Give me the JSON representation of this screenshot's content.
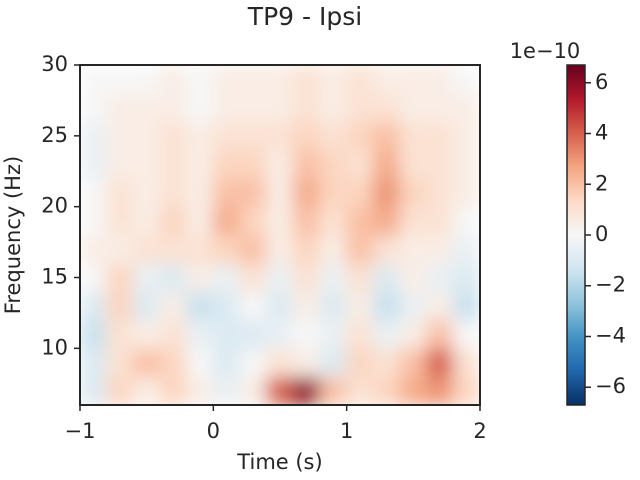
{
  "chart_data": {
    "type": "heatmap",
    "title": "TP9 - Ipsi",
    "xlabel": "Time (s)",
    "ylabel": "Frequency (Hz)",
    "x": [
      -0.9,
      -0.7,
      -0.5,
      -0.3,
      -0.1,
      0.1,
      0.3,
      0.5,
      0.7,
      0.9,
      1.1,
      1.3,
      1.5,
      1.7,
      1.9
    ],
    "y": [
      7,
      9,
      11,
      13,
      15,
      17,
      19,
      21,
      23,
      25,
      27,
      29
    ],
    "values": [
      [
        -1,
        1.5,
        0.5,
        1.5,
        0.5,
        -0.5,
        0.5,
        4,
        6,
        2,
        1,
        1.5,
        2.5,
        3,
        1.5
      ],
      [
        -1,
        1,
        2,
        1.5,
        0,
        -1,
        0,
        1,
        0.5,
        -1,
        1.5,
        1,
        2,
        4,
        1
      ],
      [
        -1.5,
        1,
        0.5,
        1,
        -0.5,
        -1,
        -1,
        -0.5,
        0,
        -0.5,
        1,
        -0.5,
        0.5,
        2,
        0
      ],
      [
        -1,
        1.5,
        -1,
        0.5,
        -1.5,
        -1,
        0,
        -1,
        0.5,
        -1,
        0.5,
        -1.5,
        -0.5,
        0.5,
        -1.5
      ],
      [
        0,
        1.5,
        -0.5,
        -1,
        0.5,
        -0.5,
        1,
        -0.5,
        1,
        -0.5,
        1,
        -1,
        0.5,
        -0.5,
        -1
      ],
      [
        0.5,
        0.5,
        1,
        1,
        1,
        1.5,
        2,
        0.5,
        1.5,
        0.5,
        2,
        1,
        0.5,
        0.5,
        -0.5
      ],
      [
        0,
        1,
        0.5,
        1.5,
        0.5,
        2.5,
        1.5,
        0.5,
        2,
        1,
        2,
        2.5,
        1,
        1,
        0
      ],
      [
        0,
        1,
        0.5,
        1,
        0.5,
        2,
        2,
        0.5,
        2.5,
        1.5,
        1.5,
        3,
        1.5,
        1,
        0.5
      ],
      [
        -0.5,
        0.5,
        0.5,
        1,
        0.5,
        1.5,
        1.5,
        0.5,
        2,
        1.5,
        1,
        2.5,
        1,
        1,
        0.5
      ],
      [
        -0.5,
        0.5,
        0.5,
        1,
        0.5,
        1,
        1,
        1,
        1.5,
        1,
        1.5,
        2,
        1,
        1,
        0.5
      ],
      [
        0,
        0.5,
        0.5,
        0.5,
        0,
        0.5,
        0.5,
        0.5,
        1,
        0.5,
        1,
        1,
        0.5,
        0.5,
        0.5
      ],
      [
        0,
        0,
        0,
        0.5,
        0,
        0.5,
        0.5,
        0.5,
        1,
        0.5,
        1,
        0.5,
        0.5,
        0.5,
        0
      ]
    ],
    "xlim": [
      -1,
      2
    ],
    "xticks": [
      {
        "value": -1,
        "label": "−1"
      },
      0,
      1,
      2
    ],
    "ylim": [
      6,
      30
    ],
    "yticks": [
      10,
      15,
      20,
      25,
      30
    ],
    "clim": [
      -6.7,
      6.7
    ],
    "cticks": [
      {
        "value": -6,
        "label": "−6"
      },
      {
        "value": -4,
        "label": "−4"
      },
      {
        "value": -2,
        "label": "−2"
      },
      0,
      2,
      4,
      6
    ],
    "colorbar_offset": "1e−10",
    "colormap": [
      "#053061",
      "#2166ac",
      "#4393c3",
      "#92c5de",
      "#d1e5f0",
      "#f7f7f7",
      "#fddbc7",
      "#f4a582",
      "#d6604d",
      "#b2182b",
      "#67001f"
    ]
  }
}
